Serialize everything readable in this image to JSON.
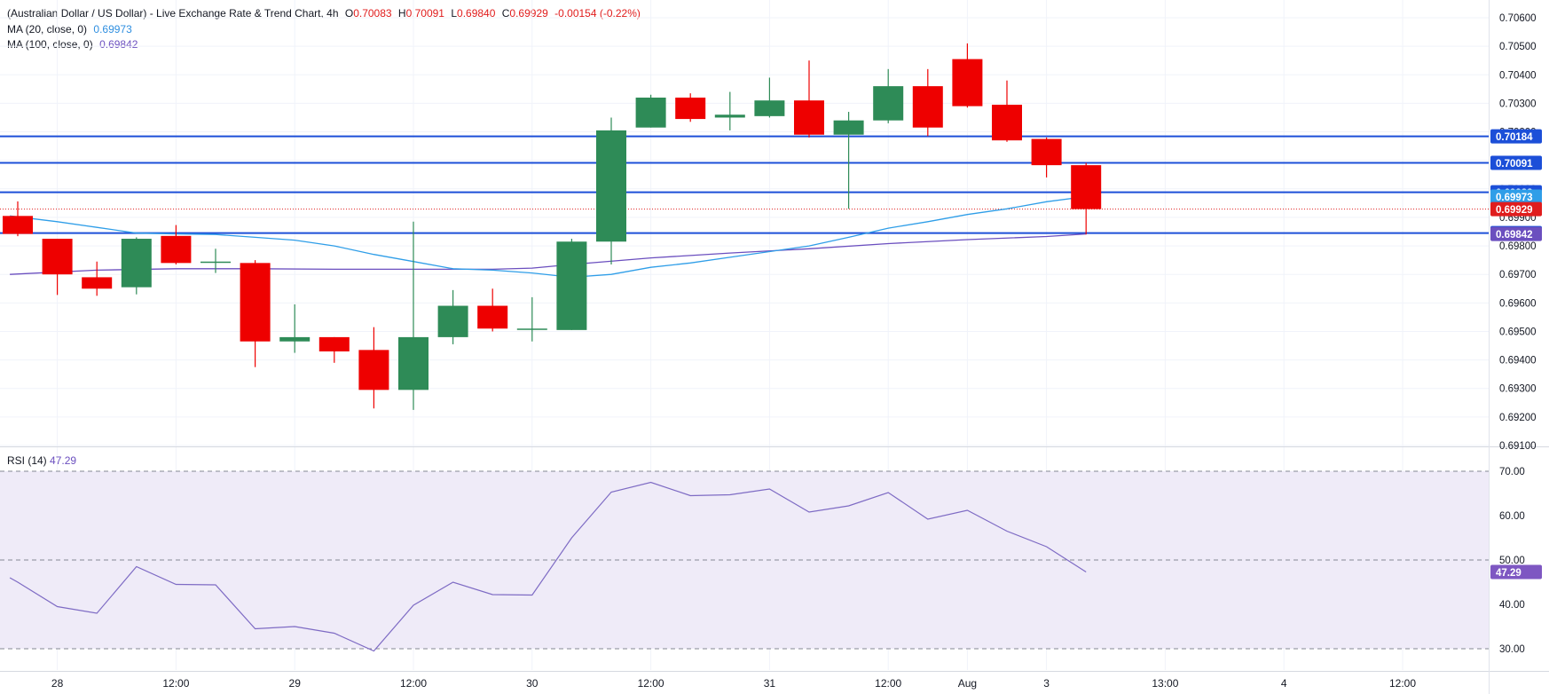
{
  "header": {
    "title": "(Australian Dollar / US Dollar) - Live Exchange Rate & Trend Chart, 4h",
    "open_label": "O",
    "open": "0.70083",
    "high_label": "H",
    "high": "0.70091",
    "low_label": "L",
    "low": "0.69840",
    "close_label": "C",
    "close": "0.69929",
    "change": "-0.00154 (-0.22%)",
    "ma20_label": "MA (20, close, 0)",
    "ma20_value": "0.69973",
    "ma100_label": "MA (100, close, 0)",
    "ma100_value": "0.69842"
  },
  "rsi_panel": {
    "label": "RSI (14)",
    "value": "47.29"
  },
  "colors": {
    "up": "#2e8b57",
    "down": "#ee0000",
    "ma20": "#2f9ee8",
    "ma100": "#6b4fbf",
    "level": "#1c4fd8",
    "rsi": "#7e6bc4",
    "rsi_band": "#efebf8"
  },
  "chart_data": [
    {
      "type": "candlestick",
      "ylim": [
        0.691,
        0.706
      ],
      "y_ticks": [
        "0.70600",
        "0.70500",
        "0.70400",
        "0.70300",
        "0.70200",
        "0.70100",
        "0.70000",
        "0.69900",
        "0.69800",
        "0.69700",
        "0.69600",
        "0.69500",
        "0.69400",
        "0.69300",
        "0.69200",
        "0.69100"
      ],
      "x_ticks": [
        {
          "label": "28",
          "bar": 1.0
        },
        {
          "label": "12:00",
          "bar": 4.0
        },
        {
          "label": "29",
          "bar": 7.0
        },
        {
          "label": "12:00",
          "bar": 10.0
        },
        {
          "label": "30",
          "bar": 13.0
        },
        {
          "label": "12:00",
          "bar": 16.0
        },
        {
          "label": "31",
          "bar": 19.0
        },
        {
          "label": "12:00",
          "bar": 22.0
        },
        {
          "label": "Aug",
          "bar": 24.0
        },
        {
          "label": "3",
          "bar": 26.0
        },
        {
          "label": "13:00",
          "bar": 29.0
        },
        {
          "label": "4",
          "bar": 32.0
        },
        {
          "label": "12:00",
          "bar": 35.0
        }
      ],
      "candles": [
        {
          "o": 0.69905,
          "h": 0.69956,
          "l": 0.69834,
          "c": 0.69842
        },
        {
          "o": 0.69825,
          "h": 0.69825,
          "l": 0.69628,
          "c": 0.697
        },
        {
          "o": 0.6969,
          "h": 0.69745,
          "l": 0.69625,
          "c": 0.6965
        },
        {
          "o": 0.69655,
          "h": 0.6983,
          "l": 0.6963,
          "c": 0.69825
        },
        {
          "o": 0.69835,
          "h": 0.69873,
          "l": 0.69735,
          "c": 0.6974
        },
        {
          "o": 0.69745,
          "h": 0.6979,
          "l": 0.69705,
          "c": 0.69745
        },
        {
          "o": 0.6974,
          "h": 0.6975,
          "l": 0.69375,
          "c": 0.69465
        },
        {
          "o": 0.69465,
          "h": 0.69595,
          "l": 0.69425,
          "c": 0.6948
        },
        {
          "o": 0.6948,
          "h": 0.6948,
          "l": 0.6939,
          "c": 0.6943
        },
        {
          "o": 0.69435,
          "h": 0.69515,
          "l": 0.6923,
          "c": 0.69295
        },
        {
          "o": 0.69295,
          "h": 0.69885,
          "l": 0.69225,
          "c": 0.6948
        },
        {
          "o": 0.6948,
          "h": 0.69645,
          "l": 0.69455,
          "c": 0.6959
        },
        {
          "o": 0.6959,
          "h": 0.6965,
          "l": 0.695,
          "c": 0.6951
        },
        {
          "o": 0.6951,
          "h": 0.6962,
          "l": 0.69465,
          "c": 0.6951
        },
        {
          "o": 0.69505,
          "h": 0.69825,
          "l": 0.69505,
          "c": 0.69815
        },
        {
          "o": 0.69815,
          "h": 0.7025,
          "l": 0.69735,
          "c": 0.70205
        },
        {
          "o": 0.70215,
          "h": 0.7033,
          "l": 0.70215,
          "c": 0.7032
        },
        {
          "o": 0.7032,
          "h": 0.70335,
          "l": 0.70235,
          "c": 0.70245
        },
        {
          "o": 0.7025,
          "h": 0.7034,
          "l": 0.70205,
          "c": 0.7026
        },
        {
          "o": 0.70255,
          "h": 0.7039,
          "l": 0.7025,
          "c": 0.7031
        },
        {
          "o": 0.7031,
          "h": 0.7045,
          "l": 0.7018,
          "c": 0.7019
        },
        {
          "o": 0.7019,
          "h": 0.7027,
          "l": 0.6993,
          "c": 0.7024
        },
        {
          "o": 0.7024,
          "h": 0.7042,
          "l": 0.7023,
          "c": 0.7036
        },
        {
          "o": 0.7036,
          "h": 0.7042,
          "l": 0.70185,
          "c": 0.70215
        },
        {
          "o": 0.70455,
          "h": 0.7051,
          "l": 0.70285,
          "c": 0.7029
        },
        {
          "o": 0.70295,
          "h": 0.7038,
          "l": 0.70165,
          "c": 0.7017
        },
        {
          "o": 0.70175,
          "h": 0.7018,
          "l": 0.7004,
          "c": 0.70083
        },
        {
          "o": 0.70083,
          "h": 0.70091,
          "l": 0.6984,
          "c": 0.69929
        }
      ],
      "ma20": [
        [
          -0.2,
          0.69905
        ],
        [
          1,
          0.69885
        ],
        [
          2,
          0.69865
        ],
        [
          3,
          0.69845
        ],
        [
          4,
          0.69842
        ],
        [
          5,
          0.6984
        ],
        [
          6,
          0.6983
        ],
        [
          7,
          0.6982
        ],
        [
          8,
          0.698
        ],
        [
          9,
          0.6977
        ],
        [
          10,
          0.69745
        ],
        [
          11,
          0.6972
        ],
        [
          12,
          0.69715
        ],
        [
          13,
          0.69705
        ],
        [
          14,
          0.6969
        ],
        [
          15,
          0.697
        ],
        [
          16,
          0.69725
        ],
        [
          17,
          0.6974
        ],
        [
          18,
          0.6976
        ],
        [
          19,
          0.6978
        ],
        [
          20,
          0.698
        ],
        [
          21,
          0.6983
        ],
        [
          22,
          0.69862
        ],
        [
          23,
          0.69885
        ],
        [
          24,
          0.6991
        ],
        [
          25,
          0.6993
        ],
        [
          26,
          0.69955
        ],
        [
          27,
          0.69973
        ]
      ],
      "ma100": [
        [
          -0.2,
          0.697
        ],
        [
          2,
          0.69715
        ],
        [
          4,
          0.6972
        ],
        [
          6,
          0.6972
        ],
        [
          8,
          0.69718
        ],
        [
          10,
          0.69718
        ],
        [
          12,
          0.69718
        ],
        [
          13,
          0.69722
        ],
        [
          14,
          0.69735
        ],
        [
          16,
          0.69758
        ],
        [
          18,
          0.69775
        ],
        [
          20,
          0.6979
        ],
        [
          22,
          0.69808
        ],
        [
          24,
          0.69822
        ],
        [
          26,
          0.69833
        ],
        [
          27,
          0.69842
        ]
      ],
      "levels": [
        {
          "label": "0.70184",
          "value": 0.70184
        },
        {
          "label": "0.70091",
          "value": 0.70091
        },
        {
          "label": "0.69988",
          "value": 0.69988
        },
        {
          "label": "0.69845",
          "value": 0.69845
        }
      ],
      "price_tags": [
        {
          "label": "0.69973",
          "value": 0.69973,
          "kind": "ma20"
        },
        {
          "label": "0.69929",
          "value": 0.69929,
          "kind": "close"
        },
        {
          "label": "0.69842",
          "value": 0.69842,
          "kind": "ma100"
        }
      ],
      "current_price": 0.69929
    },
    {
      "type": "line",
      "name": "RSI (14)",
      "ylim": [
        28,
        72
      ],
      "y_ticks": [
        "70.00",
        "60.00",
        "50.00",
        "40.00",
        "30.00"
      ],
      "bands": [
        30,
        50,
        70
      ],
      "points": [
        [
          -0.2,
          46.0
        ],
        [
          0,
          45.0
        ],
        [
          1,
          39.5
        ],
        [
          2,
          38.0
        ],
        [
          3,
          48.5
        ],
        [
          4,
          44.5
        ],
        [
          5,
          44.4
        ],
        [
          6,
          34.5
        ],
        [
          7,
          35.0
        ],
        [
          8,
          33.5
        ],
        [
          9,
          29.5
        ],
        [
          10,
          39.8
        ],
        [
          11,
          45.0
        ],
        [
          12,
          42.2
        ],
        [
          13,
          42.1
        ],
        [
          14,
          55.0
        ],
        [
          15,
          65.3
        ],
        [
          16,
          67.5
        ],
        [
          17,
          64.5
        ],
        [
          18,
          64.7
        ],
        [
          19,
          66.0
        ],
        [
          20,
          60.8
        ],
        [
          21,
          62.2
        ],
        [
          22,
          65.2
        ],
        [
          23,
          59.2
        ],
        [
          24,
          61.2
        ],
        [
          25,
          56.5
        ],
        [
          26,
          53.0
        ],
        [
          27,
          47.29
        ]
      ],
      "current_label": "47.29"
    }
  ]
}
